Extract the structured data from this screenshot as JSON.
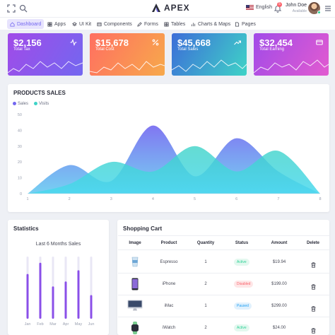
{
  "header": {
    "brand": "APEX",
    "language": "English",
    "notification_count": "5",
    "user_name": "John Doe",
    "user_role": "Available"
  },
  "nav": [
    {
      "label": "Dashboard",
      "icon": "home-icon",
      "active": true
    },
    {
      "label": "Apps",
      "icon": "grid-icon"
    },
    {
      "label": "UI Kit",
      "icon": "layers-icon"
    },
    {
      "label": "Components",
      "icon": "box-icon"
    },
    {
      "label": "Forms",
      "icon": "edit-icon"
    },
    {
      "label": "Tables",
      "icon": "table-icon"
    },
    {
      "label": "Charts & Maps",
      "icon": "bar-chart-icon"
    },
    {
      "label": "Pages",
      "icon": "file-icon"
    }
  ],
  "stats": [
    {
      "value": "$2,156",
      "label": "Total Tax",
      "icon": "activity-icon",
      "colors": [
        "#a14be8",
        "#7367f0"
      ]
    },
    {
      "value": "$15,678",
      "label": "Total Cost",
      "icon": "percent-icon",
      "colors": [
        "#ff6f61",
        "#f7a94b"
      ]
    },
    {
      "value": "$45,668",
      "label": "Total Sales",
      "icon": "trending-up-icon",
      "colors": [
        "#3d6dd8",
        "#3ed3c7"
      ]
    },
    {
      "value": "$32,454",
      "label": "Total Earning",
      "icon": "credit-card-icon",
      "colors": [
        "#a14be8",
        "#e25bd0"
      ]
    }
  ],
  "products_sales": {
    "title": "PRODUCTS SALES",
    "chart_data": {
      "type": "area",
      "x": [
        1,
        2,
        3,
        4,
        5,
        6,
        7,
        8
      ],
      "ylim": [
        0,
        50
      ],
      "yticks": [
        0,
        10,
        20,
        30,
        40,
        50
      ],
      "series": [
        {
          "name": "Sales",
          "color": "#7367f0",
          "values": [
            0,
            18,
            8,
            43,
            11,
            35,
            14,
            0
          ]
        },
        {
          "name": "Visits",
          "color": "#3ed3c7",
          "values": [
            0,
            6,
            20,
            14,
            30,
            14,
            27,
            0
          ]
        }
      ],
      "legend": "top-left",
      "grid": false
    }
  },
  "statistics": {
    "title": "Statistics",
    "chart_title": "Last 6 Months Sales",
    "chart_data": {
      "type": "bar",
      "categories": [
        "Jan",
        "Feb",
        "Mar",
        "Apr",
        "May",
        "Jun"
      ],
      "values": [
        72,
        90,
        52,
        60,
        78,
        38
      ],
      "ylim": [
        0,
        100
      ]
    }
  },
  "cart": {
    "title": "Shopping Cart",
    "columns": [
      "Image",
      "Product",
      "Quantity",
      "Status",
      "Amount",
      "Delete"
    ],
    "rows": [
      {
        "product": "Espresso",
        "quantity": "1",
        "status": "Active",
        "amount": "$19.94",
        "image": "cup-icon"
      },
      {
        "product": "iPhone",
        "quantity": "2",
        "status": "Disabled",
        "amount": "$199.00",
        "image": "phone-icon"
      },
      {
        "product": "iMac",
        "quantity": "1",
        "status": "Paused",
        "amount": "$299.00",
        "image": "monitor-icon"
      },
      {
        "product": "iWatch",
        "quantity": "2",
        "status": "Active",
        "amount": "$24.00",
        "image": "watch-icon"
      }
    ]
  },
  "colors": {
    "active": "#28d094",
    "disabled": "#fa626b",
    "paused": "#1e9ff2",
    "accent": "#7367f0"
  }
}
